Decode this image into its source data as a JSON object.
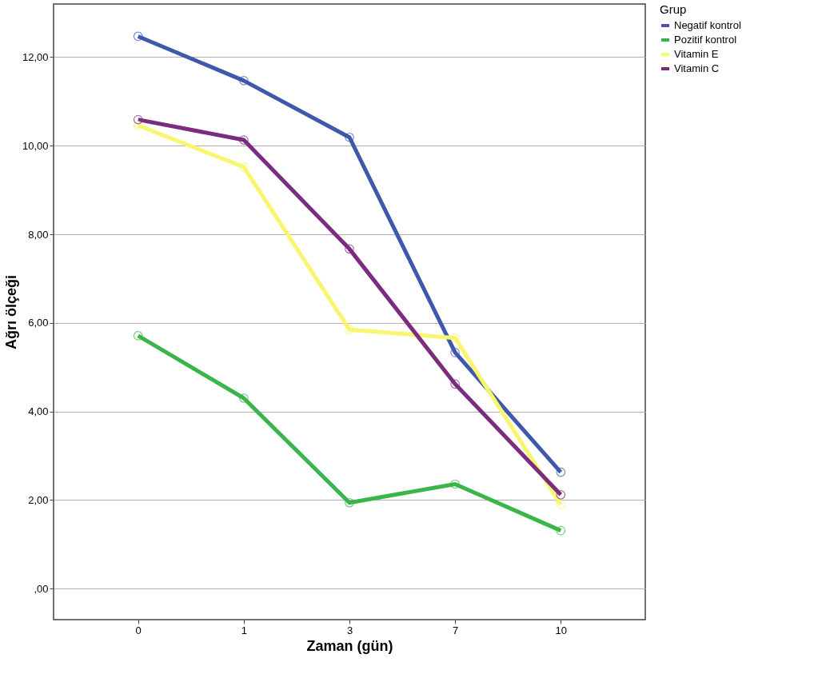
{
  "chart_data": {
    "type": "line",
    "xlabel": "Zaman (gün)",
    "ylabel": "Ağrı ölçeği",
    "legend_title": "Grup",
    "categories": [
      "0",
      "1",
      "3",
      "7",
      "10"
    ],
    "series": [
      {
        "name": "Negatif kontrol",
        "color": "#3e58ac",
        "values": [
          12.47,
          11.47,
          10.19,
          5.33,
          2.63
        ]
      },
      {
        "name": "Pozitif kontrol",
        "color": "#3bb44a",
        "values": [
          5.71,
          4.3,
          1.94,
          2.36,
          1.31
        ]
      },
      {
        "name": "Vitamin E",
        "color": "#f8f56e",
        "values": [
          10.46,
          9.52,
          5.85,
          5.66,
          1.9
        ]
      },
      {
        "name": "Vitamin C",
        "color": "#7b2c7e",
        "values": [
          10.59,
          10.13,
          7.67,
          4.62,
          2.12
        ]
      }
    ],
    "ylim": [
      -0.7,
      13.2
    ],
    "yticks": [
      {
        "value": 0,
        "label": ",00"
      },
      {
        "value": 2,
        "label": "2,00"
      },
      {
        "value": 4,
        "label": "4,00"
      },
      {
        "value": 6,
        "label": "6,00"
      },
      {
        "value": 8,
        "label": "8,00"
      },
      {
        "value": 10,
        "label": "10,00"
      },
      {
        "value": 12,
        "label": "12,00"
      }
    ],
    "grid": "y",
    "legend": "top right",
    "marker": "circle",
    "line_style": "solid"
  }
}
